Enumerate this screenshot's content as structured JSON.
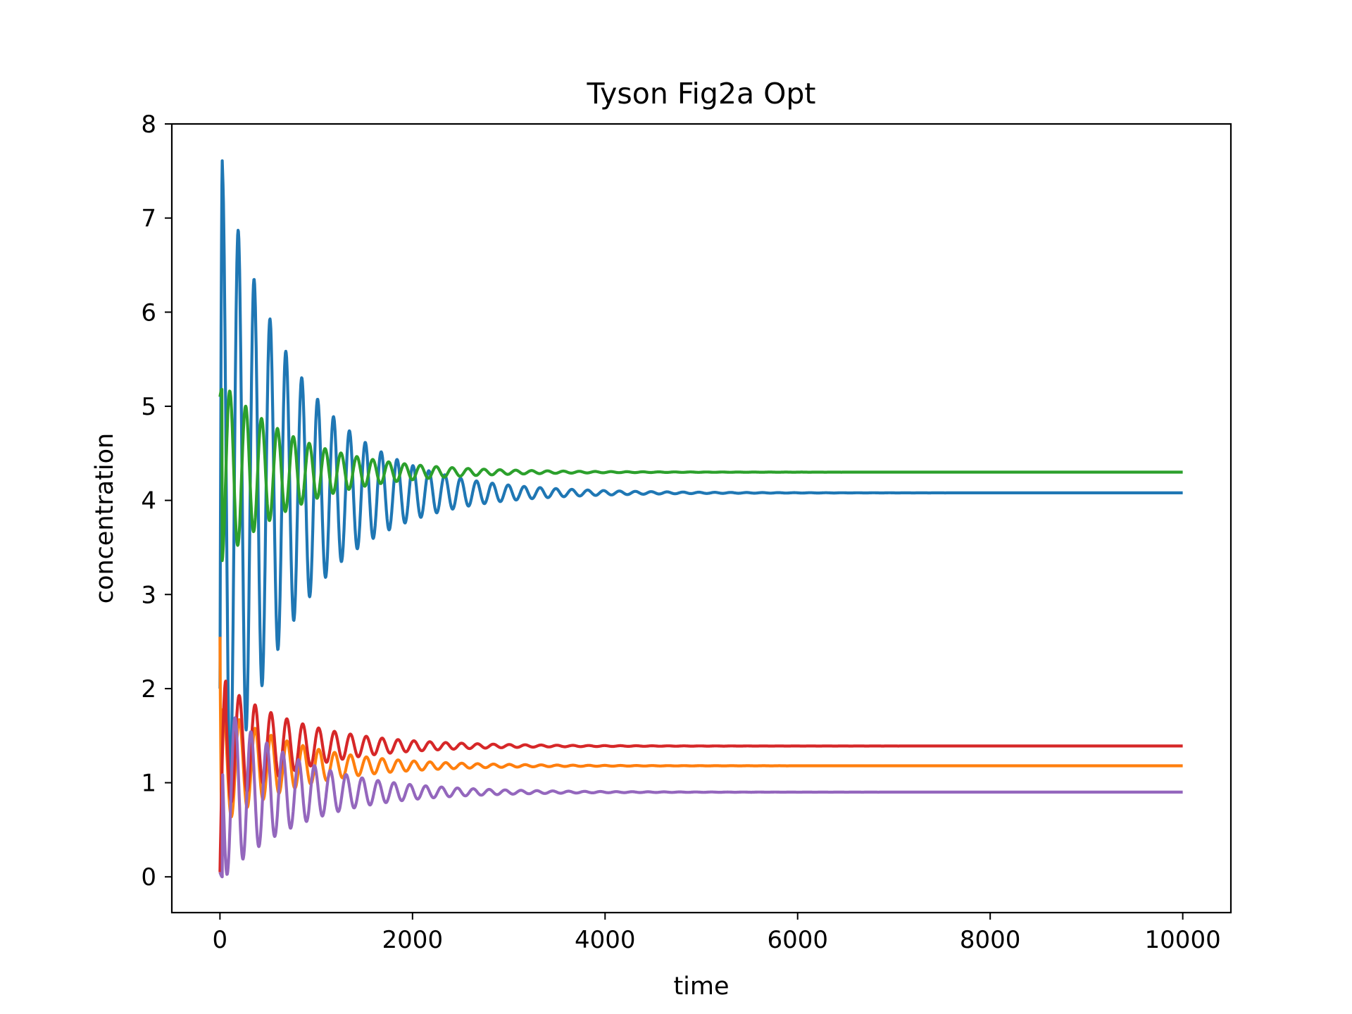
{
  "chart_data": {
    "type": "line",
    "title": "Tyson Fig2a Opt",
    "xlabel": "time",
    "ylabel": "concentration",
    "xlim": [
      -500,
      10500
    ],
    "ylim": [
      -0.38,
      8.0
    ],
    "xticks": [
      0,
      2000,
      4000,
      6000,
      8000,
      10000
    ],
    "xtick_labels": [
      "0",
      "2000",
      "4000",
      "6000",
      "8000",
      "10000"
    ],
    "yticks": [
      0,
      1,
      2,
      3,
      4,
      5,
      6,
      7,
      8
    ],
    "ytick_labels": [
      "0",
      "1",
      "2",
      "3",
      "4",
      "5",
      "6",
      "7",
      "8"
    ],
    "grid": false,
    "legend": "none",
    "x_end": 10000,
    "period": 165,
    "decay_time": 800,
    "series": [
      {
        "color": "#1f77b4",
        "start": 2.0,
        "steady_state": 4.08,
        "first_peak": 7.62,
        "first_peak_time": 25,
        "first_trough": 2.72,
        "first_trough_time": 95,
        "phase": 0.0
      },
      {
        "color": "#ff7f0e",
        "start": 2.55,
        "steady_state": 1.18,
        "first_peak": 1.8,
        "first_peak_time": 60,
        "first_trough": 0.55,
        "first_trough_time": 20,
        "phase": 0.4
      },
      {
        "color": "#2ca02c",
        "start": 5.1,
        "steady_state": 4.3,
        "first_peak": 5.18,
        "first_peak_time": 20,
        "first_trough": 3.32,
        "first_trough_time": 120,
        "phase": 0.5
      },
      {
        "color": "#d62728",
        "start": 0.05,
        "steady_state": 1.39,
        "first_peak": 2.08,
        "first_peak_time": 60,
        "first_trough": 0.75,
        "first_trough_time": 140,
        "phase": 0.15
      },
      {
        "color": "#9467bd",
        "start": 0.05,
        "steady_state": 0.9,
        "first_peak": 1.86,
        "first_peak_time": 110,
        "first_trough": 0.0,
        "first_trough_time": 25,
        "phase": 0.7
      }
    ]
  }
}
